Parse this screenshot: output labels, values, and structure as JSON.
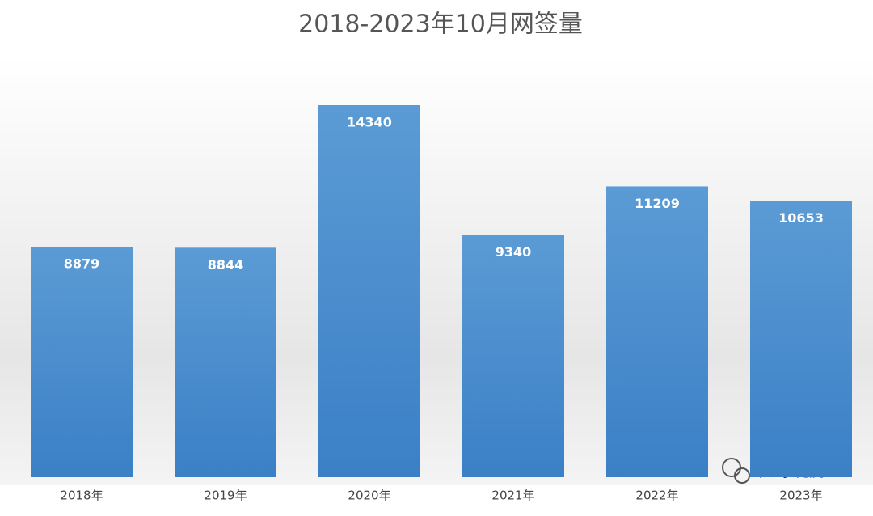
{
  "chart_data": {
    "type": "bar",
    "title": "2018-2023年10月网签量",
    "categories": [
      "2018年",
      "2019年",
      "2020年",
      "2021年",
      "2022年",
      "2023年"
    ],
    "values": [
      8879,
      8844,
      14340,
      9340,
      11209,
      10653
    ],
    "color": "#4a8ccf"
  },
  "watermark": "长鲸说房"
}
